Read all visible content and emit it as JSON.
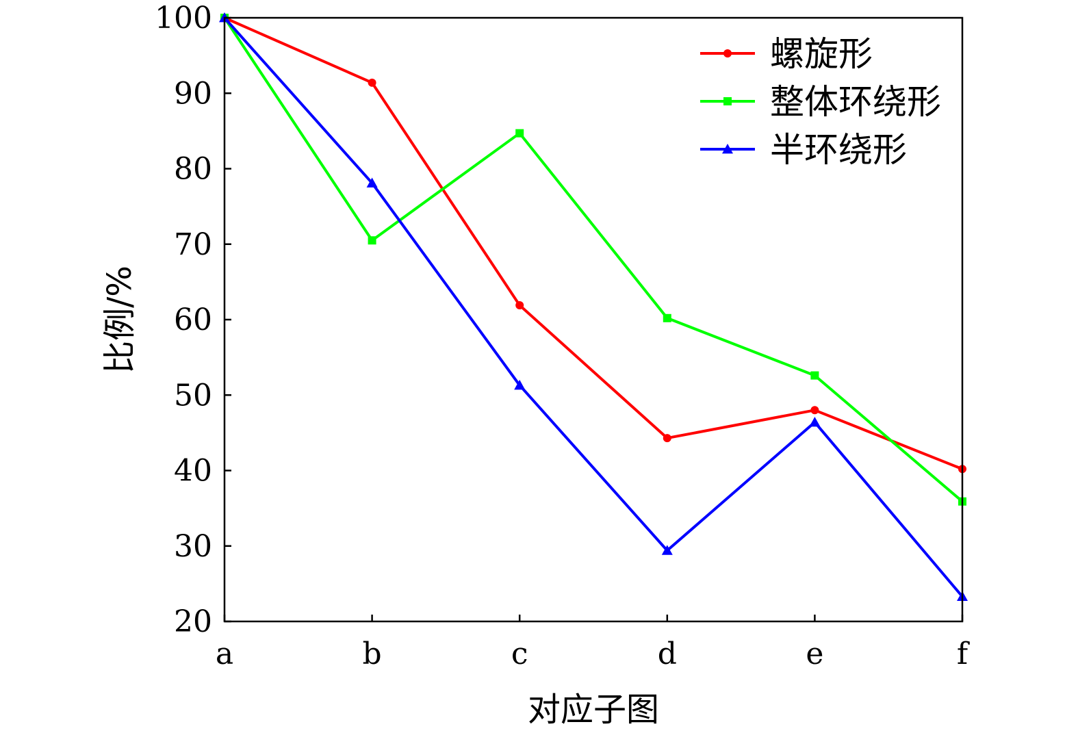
{
  "chart_data": {
    "type": "line",
    "title": "",
    "xlabel": "对应子图",
    "ylabel": "比例/%",
    "categories": [
      "a",
      "b",
      "c",
      "d",
      "e",
      "f"
    ],
    "ylim": [
      20,
      100
    ],
    "yticks": [
      20,
      30,
      40,
      50,
      60,
      70,
      80,
      90,
      100
    ],
    "grid": false,
    "legend_position": "top-right",
    "series": [
      {
        "name": "螺旋形",
        "color": "#ff0000",
        "marker": "circle",
        "values": [
          100,
          91.4,
          61.9,
          44.3,
          48.0,
          40.2
        ]
      },
      {
        "name": "整体环绕形",
        "color": "#00ff00",
        "marker": "square",
        "values": [
          100,
          70.5,
          84.7,
          60.2,
          52.6,
          35.9
        ]
      },
      {
        "name": "半环绕形",
        "color": "#0000ff",
        "marker": "triangle",
        "values": [
          100,
          78.1,
          51.3,
          29.4,
          46.4,
          23.3
        ]
      }
    ]
  }
}
